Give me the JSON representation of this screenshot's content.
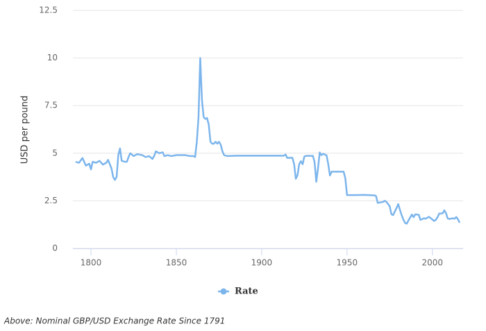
{
  "chart_data": {
    "type": "line",
    "y_label": "USD per pound",
    "caption": "Above: Nominal GBP/USD Exchange Rate Since 1791",
    "x": [
      1791,
      1793,
      1795,
      1797,
      1799,
      1800,
      1801,
      1803,
      1805,
      1807,
      1809,
      1810,
      1812,
      1813,
      1814,
      1815,
      1816,
      1817,
      1818,
      1820,
      1821,
      1822,
      1823,
      1825,
      1827,
      1830,
      1832,
      1834,
      1836,
      1837,
      1838,
      1840,
      1842,
      1843,
      1845,
      1847,
      1850,
      1852,
      1855,
      1858,
      1860,
      1861,
      1862,
      1863,
      1864,
      1865,
      1866,
      1867,
      1868,
      1869,
      1870,
      1871,
      1872,
      1873,
      1874,
      1875,
      1876,
      1877,
      1878,
      1880,
      1885,
      1890,
      1900,
      1910,
      1913,
      1914,
      1915,
      1917,
      1918,
      1919,
      1920,
      1921,
      1922,
      1923,
      1924,
      1925,
      1926,
      1930,
      1931,
      1932,
      1933,
      1934,
      1935,
      1936,
      1938,
      1939,
      1940,
      1941,
      1948,
      1949,
      1950,
      1955,
      1960,
      1966,
      1967,
      1968,
      1971,
      1972,
      1973,
      1975,
      1976,
      1977,
      1979,
      1980,
      1981,
      1982,
      1983,
      1984,
      1985,
      1986,
      1988,
      1989,
      1990,
      1992,
      1993,
      1995,
      1996,
      1998,
      2000,
      2001,
      2002,
      2003,
      2004,
      2006,
      2007,
      2008,
      2009,
      2010,
      2012,
      2013,
      2014,
      2015,
      2016
    ],
    "series": [
      {
        "name": "Rate",
        "color": "#7cb5ec",
        "values": [
          4.55,
          4.5,
          4.75,
          4.35,
          4.45,
          4.15,
          4.55,
          4.5,
          4.6,
          4.4,
          4.5,
          4.65,
          4.2,
          3.75,
          3.6,
          3.75,
          4.9,
          5.25,
          4.6,
          4.55,
          4.55,
          4.8,
          5.0,
          4.85,
          4.95,
          4.9,
          4.8,
          4.85,
          4.7,
          4.85,
          5.1,
          5.0,
          5.05,
          4.85,
          4.9,
          4.85,
          4.9,
          4.9,
          4.9,
          4.85,
          4.85,
          4.8,
          5.6,
          6.9,
          10.0,
          7.8,
          6.9,
          6.8,
          6.85,
          6.5,
          5.6,
          5.5,
          5.5,
          5.6,
          5.5,
          5.6,
          5.45,
          5.1,
          4.9,
          4.85,
          4.87,
          4.87,
          4.87,
          4.87,
          4.87,
          4.93,
          4.75,
          4.76,
          4.76,
          4.43,
          3.66,
          3.85,
          4.43,
          4.58,
          4.42,
          4.83,
          4.86,
          4.86,
          4.53,
          3.5,
          4.2,
          5.04,
          4.9,
          4.97,
          4.89,
          4.43,
          3.83,
          4.03,
          4.03,
          3.69,
          2.8,
          2.8,
          2.81,
          2.79,
          2.75,
          2.39,
          2.44,
          2.5,
          2.45,
          2.22,
          1.8,
          1.75,
          2.12,
          2.33,
          2.03,
          1.75,
          1.52,
          1.34,
          1.3,
          1.47,
          1.78,
          1.64,
          1.79,
          1.77,
          1.5,
          1.58,
          1.56,
          1.66,
          1.52,
          1.44,
          1.5,
          1.63,
          1.83,
          1.84,
          2.0,
          1.85,
          1.57,
          1.55,
          1.58,
          1.56,
          1.65,
          1.53,
          1.35
        ]
      }
    ],
    "xlim": [
      1789.4,
      2018
    ],
    "xticks": [
      1800,
      1850,
      1900,
      1950,
      2000
    ],
    "ylim": [
      0,
      12.5
    ],
    "yticks": [
      0,
      2.5,
      5,
      7.5,
      10,
      12.5
    ],
    "grid": true,
    "legend": "bottom"
  }
}
